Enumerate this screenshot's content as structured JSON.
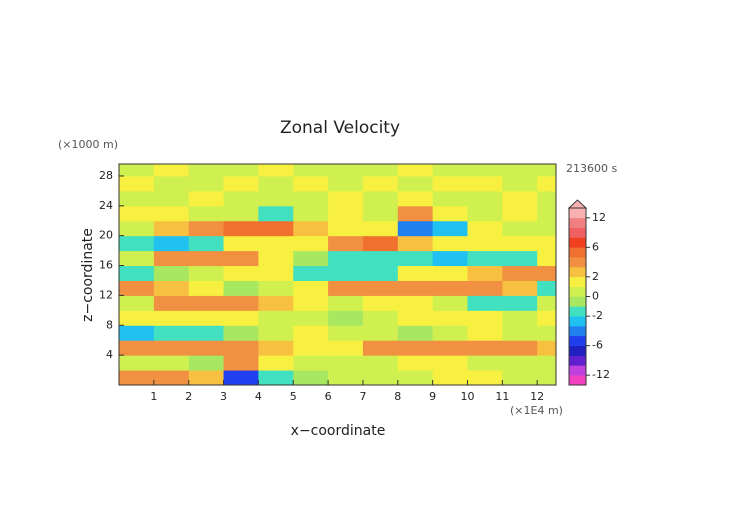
{
  "chart_data": {
    "type": "contour",
    "title": "Zonal Velocity",
    "y_unit": "(×1000 m)",
    "time_label": "213600 s",
    "x_label": "x−coordinate",
    "y_label": "z−coordinate",
    "x_unit": "(×1E4 m)",
    "xlim": [
      0,
      12.54
    ],
    "ylim": [
      0,
      29.6
    ],
    "xticks": [
      1,
      2,
      3,
      4,
      5,
      6,
      7,
      8,
      9,
      10,
      11,
      12
    ],
    "yticks": [
      4,
      8,
      12,
      16,
      20,
      24,
      28
    ],
    "x": [
      0.5,
      1.5,
      2.5,
      3.5,
      4.5,
      5.5,
      6.5,
      7.5,
      8.5,
      9.5,
      10.5,
      11.5,
      12.5
    ],
    "y": [
      1,
      3,
      5,
      7,
      9,
      11,
      13,
      15,
      17,
      19,
      21,
      23,
      25,
      27,
      29
    ],
    "z": [
      [
        3,
        3,
        2,
        -6,
        -2,
        -1,
        0,
        0,
        0,
        1,
        1,
        0,
        0
      ],
      [
        0,
        0,
        -1,
        3,
        1,
        0,
        0,
        0,
        1,
        1,
        0,
        0,
        0
      ],
      [
        3,
        3,
        3,
        3,
        2,
        1,
        1,
        3,
        3,
        3,
        3,
        3,
        2
      ],
      [
        -3,
        -2,
        -2,
        -1,
        0,
        1,
        0,
        0,
        -1,
        0,
        1,
        0,
        0
      ],
      [
        1,
        1,
        1,
        1,
        0,
        0,
        -1,
        0,
        1,
        1,
        1,
        0,
        1
      ],
      [
        0,
        3,
        3,
        3,
        2,
        1,
        0,
        1,
        1,
        0,
        -2,
        -2,
        0
      ],
      [
        3,
        2,
        1,
        -1,
        0,
        1,
        3,
        3,
        3,
        3,
        3,
        2,
        -2
      ],
      [
        -2,
        -1,
        0,
        1,
        1,
        -2,
        -2,
        -2,
        1,
        1,
        2,
        3,
        3
      ],
      [
        0,
        3,
        3,
        3,
        1,
        -1,
        -2,
        -2,
        -2,
        -3,
        -2,
        -2,
        1
      ],
      [
        -2,
        -3,
        -2,
        1,
        1,
        1,
        3,
        4,
        2,
        1,
        1,
        1,
        1
      ],
      [
        0,
        2,
        3,
        4,
        5,
        2,
        1,
        1,
        -4,
        -3,
        1,
        0,
        0
      ],
      [
        1,
        1,
        0,
        0,
        -2,
        0,
        1,
        0,
        3,
        1,
        0,
        1,
        0
      ],
      [
        0,
        0,
        1,
        0,
        0,
        0,
        1,
        0,
        1,
        0,
        0,
        1,
        0
      ],
      [
        1,
        0,
        0,
        1,
        0,
        1,
        0,
        1,
        0,
        1,
        1,
        0,
        1
      ],
      [
        0,
        1,
        0,
        0,
        1,
        0,
        0,
        0,
        1,
        0,
        0,
        0,
        0
      ]
    ],
    "levels": [
      -14,
      -12,
      -10,
      -8,
      -6,
      -4,
      -3,
      -2,
      -1,
      0,
      1,
      2,
      3,
      4,
      6,
      8,
      10,
      12,
      14
    ],
    "colors": [
      "#f040c0",
      "#c040e0",
      "#6020d0",
      "#2020c0",
      "#2040f0",
      "#2080f0",
      "#20c0f0",
      "#40e0c0",
      "#a8e860",
      "#d0f050",
      "#f8f040",
      "#f8c040",
      "#f09040",
      "#f07030",
      "#f04020",
      "#f06060",
      "#f08080",
      "#f8b0b0"
    ],
    "colorbar_ticks": [
      12,
      6,
      2,
      0,
      -2,
      -6,
      -12
    ]
  }
}
